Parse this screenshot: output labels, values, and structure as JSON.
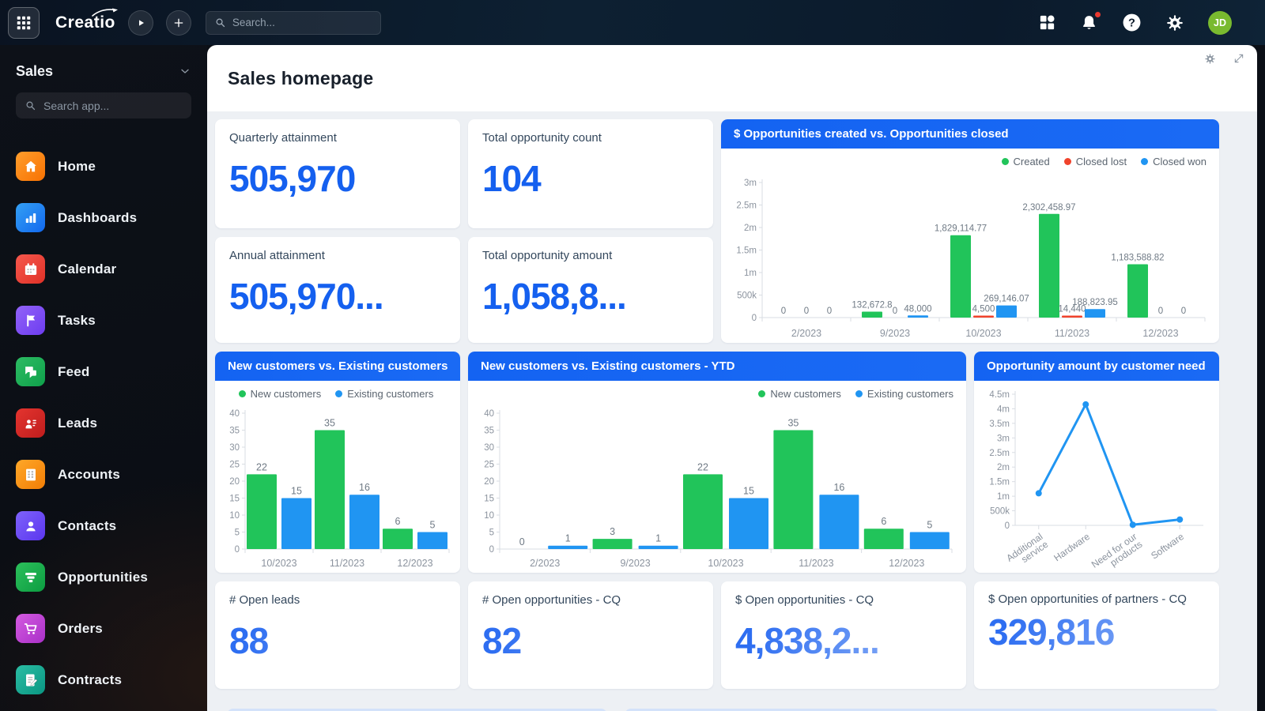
{
  "topbar": {
    "logo": "Creatio",
    "search_placeholder": "Search...",
    "avatar_initials": "JD",
    "icons": [
      "app-launcher-grid",
      "play",
      "add",
      "workspaces",
      "notifications",
      "help",
      "settings",
      "avatar"
    ]
  },
  "sidebar": {
    "workspace": "Sales",
    "search_placeholder": "Search app...",
    "items": [
      {
        "label": "Home",
        "icon": "home",
        "c1": "#ff9e2c",
        "c2": "#f77102"
      },
      {
        "label": "Dashboards",
        "icon": "dashboards",
        "c1": "#34a0f4",
        "c2": "#1268ee"
      },
      {
        "label": "Calendar",
        "icon": "calendar",
        "c1": "#f6584d",
        "c2": "#e03127"
      },
      {
        "label": "Tasks",
        "icon": "tasks",
        "c1": "#9263f8",
        "c2": "#6d3cf0"
      },
      {
        "label": "Feed",
        "icon": "feed",
        "c1": "#2dbb63",
        "c2": "#0fa14b"
      },
      {
        "label": "Leads",
        "icon": "leads",
        "c1": "#e4342f",
        "c2": "#bf1d1d"
      },
      {
        "label": "Accounts",
        "icon": "accounts",
        "c1": "#ffa829",
        "c2": "#f27d05"
      },
      {
        "label": "Contacts",
        "icon": "contacts",
        "c1": "#7e62fb",
        "c2": "#5b36ee"
      },
      {
        "label": "Opportunities",
        "icon": "opportunities",
        "c1": "#2cc05b",
        "c2": "#0c9c41"
      },
      {
        "label": "Orders",
        "icon": "orders",
        "c1": "#d45ae0",
        "c2": "#a930c8"
      },
      {
        "label": "Contracts",
        "icon": "contracts",
        "c1": "#2bbda4",
        "c2": "#0a9682"
      }
    ]
  },
  "main": {
    "title": "Sales homepage",
    "kpis": {
      "quarterly_attainment": {
        "label": "Quarterly attainment",
        "value": "505,970"
      },
      "total_opportunity_count": {
        "label": "Total opportunity count",
        "value": "104"
      },
      "annual_attainment": {
        "label": "Annual attainment",
        "value": "505,970..."
      },
      "total_opportunity_amount": {
        "label": "Total opportunity amount",
        "value": "1,058,8..."
      },
      "open_leads": {
        "label": "# Open leads",
        "value": "88"
      },
      "open_opportunities_cq": {
        "label": "# Open opportunities - CQ",
        "value": "82"
      },
      "open_opportunities_amount_cq": {
        "label": "$ Open opportunities - CQ",
        "value": "4,838,2..."
      },
      "open_opportunities_partners_cq": {
        "label": "$ Open opportunities of partners - CQ",
        "value": "329,816"
      }
    }
  },
  "colors": {
    "accent_blue": "#1463f2",
    "kpi_blue": "#1560ef",
    "series_green": "#21c45a",
    "series_red": "#f0432c",
    "series_blue": "#2095f2",
    "avatar_green": "#79ba2f",
    "notification_red": "#e8382f"
  },
  "chart_data": [
    {
      "type": "bar",
      "title": "$ Opportunities created vs. Opportunities closed",
      "categories": [
        "2/2023",
        "9/2023",
        "10/2023",
        "11/2023",
        "12/2023"
      ],
      "series": [
        {
          "name": "Created",
          "color": "#21c45a",
          "values": [
            0,
            132672.8,
            1829114.77,
            2302458.97,
            1183588.82
          ],
          "labels": [
            "0",
            "132,672.8",
            "1,829,114.77",
            "2,302,458.97",
            "1,183,588.82"
          ]
        },
        {
          "name": "Closed lost",
          "color": "#f0432c",
          "values": [
            0,
            0,
            4500,
            14440,
            0
          ],
          "labels": [
            "0",
            "0",
            "4,500",
            "14,440",
            "0"
          ]
        },
        {
          "name": "Closed won",
          "color": "#2095f2",
          "values": [
            0,
            48000,
            269146.07,
            188823.95,
            0
          ],
          "labels": [
            "0",
            "48,000",
            "269,146.07",
            "188,823.95",
            "0"
          ]
        }
      ],
      "ylim": [
        0,
        3000000
      ],
      "yticks": [
        {
          "v": 0,
          "t": "0"
        },
        {
          "v": 500000,
          "t": "500k"
        },
        {
          "v": 1000000,
          "t": "1m"
        },
        {
          "v": 1500000,
          "t": "1.5m"
        },
        {
          "v": 2000000,
          "t": "2m"
        },
        {
          "v": 2500000,
          "t": "2.5m"
        },
        {
          "v": 3000000,
          "t": "3m"
        }
      ],
      "legend_position": "right",
      "grid": false
    },
    {
      "type": "bar",
      "title": "New customers vs. Existing customers",
      "categories": [
        "10/2023",
        "11/2023",
        "12/2023"
      ],
      "series": [
        {
          "name": "New customers",
          "color": "#21c45a",
          "values": [
            22,
            35,
            6
          ]
        },
        {
          "name": "Existing customers",
          "color": "#2095f2",
          "values": [
            15,
            16,
            5
          ]
        }
      ],
      "ylim": [
        0,
        40
      ],
      "yticks": [
        {
          "v": 0,
          "t": "0"
        },
        {
          "v": 5,
          "t": "5"
        },
        {
          "v": 10,
          "t": "10"
        },
        {
          "v": 15,
          "t": "15"
        },
        {
          "v": 20,
          "t": "20"
        },
        {
          "v": 25,
          "t": "25"
        },
        {
          "v": 30,
          "t": "30"
        },
        {
          "v": 35,
          "t": "35"
        },
        {
          "v": 40,
          "t": "40"
        }
      ],
      "legend_position": "center",
      "grid": false
    },
    {
      "type": "bar",
      "title": "New customers vs. Existing customers - YTD",
      "categories": [
        "2/2023",
        "9/2023",
        "10/2023",
        "11/2023",
        "12/2023"
      ],
      "series": [
        {
          "name": "New customers",
          "color": "#21c45a",
          "values": [
            0,
            3,
            22,
            35,
            6
          ]
        },
        {
          "name": "Existing customers",
          "color": "#2095f2",
          "values": [
            1,
            1,
            15,
            16,
            5
          ]
        }
      ],
      "ylim": [
        0,
        40
      ],
      "yticks": [
        {
          "v": 0,
          "t": "0"
        },
        {
          "v": 5,
          "t": "5"
        },
        {
          "v": 10,
          "t": "10"
        },
        {
          "v": 15,
          "t": "15"
        },
        {
          "v": 20,
          "t": "20"
        },
        {
          "v": 25,
          "t": "25"
        },
        {
          "v": 30,
          "t": "30"
        },
        {
          "v": 35,
          "t": "35"
        },
        {
          "v": 40,
          "t": "40"
        }
      ],
      "legend_position": "right",
      "grid": false
    },
    {
      "type": "line",
      "title": "Opportunity amount by customer need",
      "categories": [
        "Additional\nservice",
        "Hardware",
        "Need for our\nproducts",
        "Software"
      ],
      "values": [
        1100000,
        4150000,
        20000,
        200000
      ],
      "color": "#2095f2",
      "ylim": [
        0,
        4500000
      ],
      "yticks": [
        {
          "v": 0,
          "t": "0"
        },
        {
          "v": 500000,
          "t": "500k"
        },
        {
          "v": 1000000,
          "t": "1m"
        },
        {
          "v": 1500000,
          "t": "1.5m"
        },
        {
          "v": 2000000,
          "t": "2m"
        },
        {
          "v": 2500000,
          "t": "2.5m"
        },
        {
          "v": 3000000,
          "t": "3m"
        },
        {
          "v": 3500000,
          "t": "3.5m"
        },
        {
          "v": 4000000,
          "t": "4m"
        },
        {
          "v": 4500000,
          "t": "4.5m"
        }
      ],
      "legend_position": "none",
      "grid": false
    }
  ]
}
